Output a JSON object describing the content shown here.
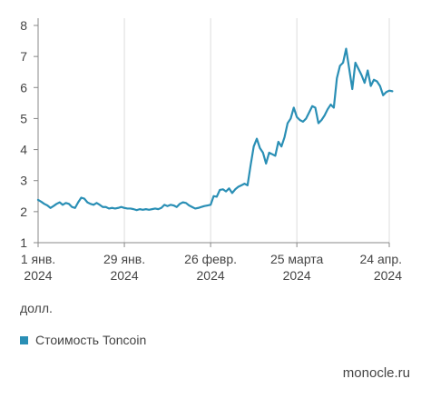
{
  "chart_data": {
    "type": "line",
    "unit_label": "долл.",
    "source": "monocle.ru",
    "ylim": [
      1,
      8
    ],
    "y_ticks": [
      1,
      2,
      3,
      4,
      5,
      6,
      7,
      8
    ],
    "x_ticks": [
      {
        "date": "2024-01-01",
        "label": [
          "1 янв.",
          "2024"
        ]
      },
      {
        "date": "2024-01-29",
        "label": [
          "29 янв.",
          "2024"
        ]
      },
      {
        "date": "2024-02-26",
        "label": [
          "26 февр.",
          "2024"
        ]
      },
      {
        "date": "2024-03-25",
        "label": [
          "25 марта",
          "2024"
        ]
      },
      {
        "date": "2024-04-24",
        "label": [
          "24 апр.",
          "2024"
        ]
      }
    ],
    "grid": "vertical",
    "legend_position": "bottom-left",
    "color": "#2a8fb5",
    "series": [
      {
        "name": "Стоимость Toncoin",
        "x": [
          "2024-01-01",
          "2024-01-02",
          "2024-01-03",
          "2024-01-04",
          "2024-01-05",
          "2024-01-06",
          "2024-01-07",
          "2024-01-08",
          "2024-01-09",
          "2024-01-10",
          "2024-01-11",
          "2024-01-12",
          "2024-01-13",
          "2024-01-14",
          "2024-01-15",
          "2024-01-16",
          "2024-01-17",
          "2024-01-18",
          "2024-01-19",
          "2024-01-20",
          "2024-01-21",
          "2024-01-22",
          "2024-01-23",
          "2024-01-24",
          "2024-01-25",
          "2024-01-26",
          "2024-01-27",
          "2024-01-28",
          "2024-01-29",
          "2024-01-30",
          "2024-01-31",
          "2024-02-01",
          "2024-02-02",
          "2024-02-03",
          "2024-02-04",
          "2024-02-05",
          "2024-02-06",
          "2024-02-07",
          "2024-02-08",
          "2024-02-09",
          "2024-02-10",
          "2024-02-11",
          "2024-02-12",
          "2024-02-13",
          "2024-02-14",
          "2024-02-15",
          "2024-02-16",
          "2024-02-17",
          "2024-02-18",
          "2024-02-19",
          "2024-02-20",
          "2024-02-21",
          "2024-02-22",
          "2024-02-23",
          "2024-02-24",
          "2024-02-25",
          "2024-02-26",
          "2024-02-27",
          "2024-02-28",
          "2024-02-29",
          "2024-03-01",
          "2024-03-02",
          "2024-03-03",
          "2024-03-04",
          "2024-03-05",
          "2024-03-06",
          "2024-03-07",
          "2024-03-08",
          "2024-03-09",
          "2024-03-10",
          "2024-03-11",
          "2024-03-12",
          "2024-03-13",
          "2024-03-14",
          "2024-03-15",
          "2024-03-16",
          "2024-03-17",
          "2024-03-18",
          "2024-03-19",
          "2024-03-20",
          "2024-03-21",
          "2024-03-22",
          "2024-03-23",
          "2024-03-24",
          "2024-03-25",
          "2024-03-26",
          "2024-03-27",
          "2024-03-28",
          "2024-03-29",
          "2024-03-30",
          "2024-03-31",
          "2024-04-01",
          "2024-04-02",
          "2024-04-03",
          "2024-04-04",
          "2024-04-05",
          "2024-04-06",
          "2024-04-07",
          "2024-04-08",
          "2024-04-09",
          "2024-04-10",
          "2024-04-11",
          "2024-04-12",
          "2024-04-13",
          "2024-04-14",
          "2024-04-15",
          "2024-04-16",
          "2024-04-17",
          "2024-04-18",
          "2024-04-19",
          "2024-04-20",
          "2024-04-21",
          "2024-04-22",
          "2024-04-23",
          "2024-04-24",
          "2024-04-25"
        ],
        "values": [
          2.38,
          2.32,
          2.25,
          2.2,
          2.12,
          2.18,
          2.25,
          2.3,
          2.22,
          2.28,
          2.25,
          2.15,
          2.12,
          2.3,
          2.45,
          2.42,
          2.3,
          2.25,
          2.22,
          2.28,
          2.22,
          2.15,
          2.15,
          2.1,
          2.12,
          2.1,
          2.12,
          2.15,
          2.12,
          2.1,
          2.1,
          2.08,
          2.05,
          2.08,
          2.06,
          2.08,
          2.06,
          2.08,
          2.1,
          2.08,
          2.12,
          2.22,
          2.18,
          2.22,
          2.2,
          2.15,
          2.25,
          2.3,
          2.28,
          2.2,
          2.15,
          2.1,
          2.12,
          2.15,
          2.18,
          2.2,
          2.22,
          2.5,
          2.48,
          2.7,
          2.72,
          2.65,
          2.75,
          2.6,
          2.72,
          2.8,
          2.85,
          2.9,
          2.85,
          3.5,
          4.1,
          4.35,
          4.05,
          3.9,
          3.55,
          3.9,
          3.85,
          3.8,
          4.25,
          4.1,
          4.4,
          4.85,
          5.0,
          5.35,
          5.05,
          4.95,
          4.9,
          5.0,
          5.2,
          5.4,
          5.35,
          4.85,
          4.95,
          5.1,
          5.3,
          5.45,
          5.35,
          6.3,
          6.7,
          6.8,
          7.25,
          6.6,
          5.95,
          6.8,
          6.6,
          6.4,
          6.15,
          6.55,
          6.05,
          6.25,
          6.2,
          6.05,
          5.75,
          5.85,
          5.9,
          5.88
        ]
      }
    ]
  },
  "legend": {
    "label": "Стоимость Toncoin"
  }
}
